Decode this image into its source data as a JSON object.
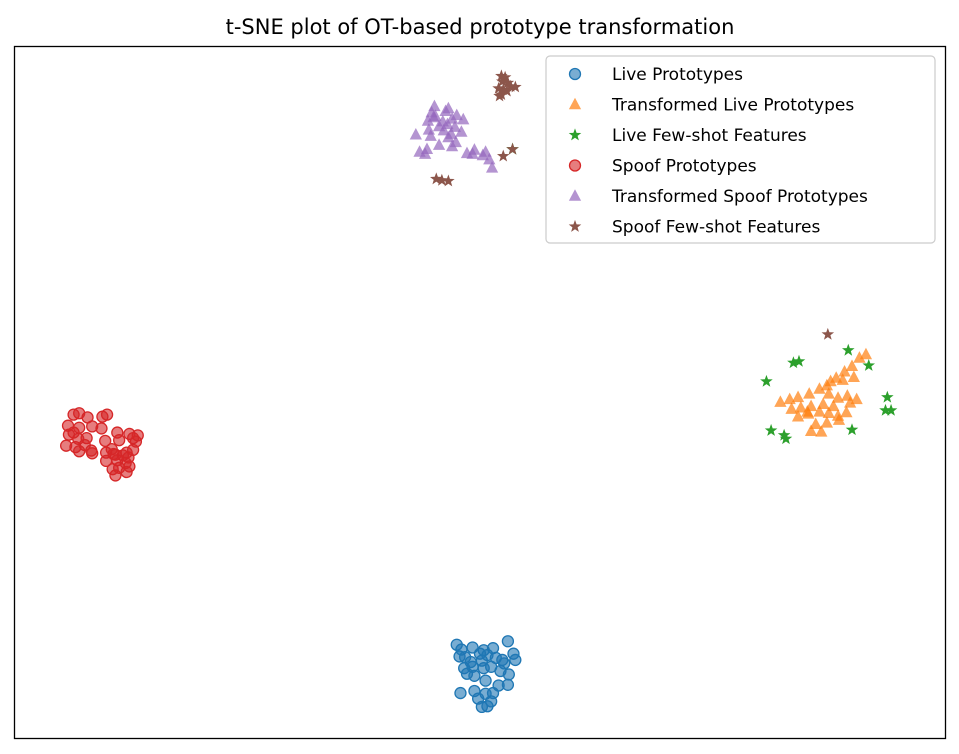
{
  "chart_data": {
    "type": "scatter",
    "title": "t-SNE plot of OT-based prototype transformation",
    "xlabel": "",
    "ylabel": "",
    "xlim": [
      0,
      100
    ],
    "ylim": [
      0,
      100
    ],
    "ticks": "none",
    "grid": false,
    "legend_position": "top-right",
    "series": [
      {
        "name": "Live Prototypes",
        "marker": "circle",
        "color": "#1f77b4",
        "points": [
          [
            47.5,
            13.5
          ],
          [
            48.0,
            12.8
          ],
          [
            49.2,
            13.1
          ],
          [
            50.4,
            12.7
          ],
          [
            51.4,
            13.0
          ],
          [
            53.0,
            14.0
          ],
          [
            47.8,
            11.8
          ],
          [
            48.4,
            11.7
          ],
          [
            50.0,
            12.2
          ],
          [
            50.8,
            12.0
          ],
          [
            51.7,
            11.6
          ],
          [
            52.4,
            11.3
          ],
          [
            53.6,
            12.2
          ],
          [
            53.8,
            11.3
          ],
          [
            48.3,
            10.1
          ],
          [
            49.2,
            10.3
          ],
          [
            50.4,
            10.1
          ],
          [
            51.2,
            10.3
          ],
          [
            52.2,
            9.7
          ],
          [
            53.1,
            9.2
          ],
          [
            48.6,
            9.3
          ],
          [
            49.4,
            9.0
          ],
          [
            50.6,
            8.3
          ],
          [
            52.0,
            7.6
          ],
          [
            53.0,
            7.7
          ],
          [
            47.9,
            6.5
          ],
          [
            49.4,
            6.8
          ],
          [
            50.6,
            6.4
          ],
          [
            51.4,
            6.5
          ],
          [
            49.8,
            5.7
          ],
          [
            51.2,
            5.3
          ],
          [
            50.8,
            4.6
          ],
          [
            50.2,
            4.5
          ],
          [
            49.0,
            11.0
          ],
          [
            50.2,
            11.2
          ],
          [
            52.6,
            10.8
          ]
        ]
      },
      {
        "name": "Transformed Live Prototypes",
        "marker": "triangle-up",
        "color": "#ff7f0e",
        "points": [
          [
            91.5,
            55.5
          ],
          [
            90.8,
            55.0
          ],
          [
            90.0,
            53.8
          ],
          [
            89.2,
            53.0
          ],
          [
            88.3,
            52.1
          ],
          [
            87.7,
            51.6
          ],
          [
            87.3,
            51.0
          ],
          [
            86.5,
            50.5
          ],
          [
            85.4,
            49.8
          ],
          [
            84.2,
            49.3
          ],
          [
            83.3,
            49.0
          ],
          [
            82.3,
            48.6
          ],
          [
            87.5,
            49.8
          ],
          [
            88.5,
            49.2
          ],
          [
            89.5,
            49.5
          ],
          [
            90.5,
            49.0
          ],
          [
            83.5,
            47.6
          ],
          [
            84.5,
            47.8
          ],
          [
            85.6,
            48.0
          ],
          [
            86.9,
            48.3
          ],
          [
            88.0,
            48.0
          ],
          [
            89.8,
            48.5
          ],
          [
            84.2,
            46.5
          ],
          [
            85.3,
            46.9
          ],
          [
            86.5,
            47.2
          ],
          [
            87.5,
            47.0
          ],
          [
            88.5,
            46.6
          ],
          [
            86.1,
            45.4
          ],
          [
            87.3,
            45.6
          ],
          [
            88.6,
            46.0
          ],
          [
            89.4,
            47.1
          ],
          [
            85.6,
            44.4
          ],
          [
            86.7,
            44.3
          ],
          [
            89.0,
            51.8
          ],
          [
            90.2,
            52.2
          ],
          [
            85.2,
            47.2
          ]
        ]
      },
      {
        "name": "Live Few-shot Features",
        "marker": "star",
        "color": "#2ca02c",
        "points": [
          [
            53.5,
            85.2
          ],
          [
            89.6,
            56.1
          ],
          [
            83.7,
            54.3
          ],
          [
            84.3,
            54.5
          ],
          [
            91.8,
            53.9
          ],
          [
            80.8,
            51.6
          ],
          [
            93.8,
            49.3
          ],
          [
            93.6,
            47.4
          ],
          [
            94.2,
            47.4
          ],
          [
            81.3,
            44.5
          ],
          [
            82.7,
            43.8
          ],
          [
            82.9,
            43.3
          ],
          [
            90.0,
            44.6
          ]
        ]
      },
      {
        "name": "Spoof Prototypes",
        "marker": "circle",
        "color": "#d62728",
        "points": [
          [
            6.3,
            46.8
          ],
          [
            6.9,
            47.0
          ],
          [
            7.8,
            46.4
          ],
          [
            9.4,
            46.5
          ],
          [
            9.9,
            46.8
          ],
          [
            5.7,
            45.2
          ],
          [
            6.9,
            44.9
          ],
          [
            8.3,
            45.1
          ],
          [
            9.3,
            44.8
          ],
          [
            11.0,
            44.2
          ],
          [
            12.3,
            44.0
          ],
          [
            13.2,
            43.8
          ],
          [
            5.8,
            43.9
          ],
          [
            6.8,
            43.3
          ],
          [
            7.7,
            43.4
          ],
          [
            9.7,
            43.0
          ],
          [
            11.2,
            43.1
          ],
          [
            12.7,
            43.4
          ],
          [
            13.0,
            42.9
          ],
          [
            5.5,
            42.3
          ],
          [
            6.5,
            42.1
          ],
          [
            7.5,
            42.4
          ],
          [
            8.2,
            41.6
          ],
          [
            10.6,
            41.1
          ],
          [
            12.0,
            41.3
          ],
          [
            12.7,
            41.7
          ],
          [
            6.9,
            41.5
          ],
          [
            8.3,
            41.2
          ],
          [
            9.8,
            41.3
          ],
          [
            10.8,
            41.0
          ],
          [
            11.6,
            40.9
          ],
          [
            12.2,
            40.6
          ],
          [
            9.8,
            40.1
          ],
          [
            11.0,
            40.2
          ],
          [
            11.9,
            39.8
          ],
          [
            12.3,
            39.3
          ],
          [
            10.5,
            38.9
          ],
          [
            11.2,
            39.1
          ],
          [
            12.0,
            38.5
          ],
          [
            10.8,
            38.0
          ],
          [
            6.3,
            44.2
          ],
          [
            10.4,
            41.8
          ]
        ]
      },
      {
        "name": "Transformed Spoof Prototypes",
        "marker": "triangle-up",
        "color": "#9467bd",
        "points": [
          [
            45.1,
            91.4
          ],
          [
            46.6,
            91.1
          ],
          [
            44.8,
            90.5
          ],
          [
            46.3,
            90.7
          ],
          [
            47.5,
            90.1
          ],
          [
            45.0,
            89.8
          ],
          [
            46.0,
            89.2
          ],
          [
            47.0,
            89.6
          ],
          [
            48.2,
            89.5
          ],
          [
            44.4,
            89.3
          ],
          [
            46.5,
            88.8
          ],
          [
            45.6,
            88.5
          ],
          [
            47.3,
            88.4
          ],
          [
            44.5,
            88.0
          ],
          [
            46.1,
            87.9
          ],
          [
            48.0,
            87.7
          ],
          [
            43.1,
            87.3
          ],
          [
            44.7,
            87.1
          ],
          [
            46.6,
            86.9
          ],
          [
            47.4,
            86.2
          ],
          [
            45.6,
            85.8
          ],
          [
            47.0,
            85.6
          ],
          [
            44.3,
            85.2
          ],
          [
            43.5,
            84.8
          ],
          [
            44.1,
            84.5
          ],
          [
            48.6,
            84.6
          ],
          [
            49.2,
            84.5
          ],
          [
            50.3,
            84.3
          ],
          [
            50.6,
            84.8
          ],
          [
            49.4,
            85.1
          ],
          [
            51.0,
            83.7
          ],
          [
            51.3,
            82.5
          ],
          [
            45.2,
            90.0
          ],
          [
            46.9,
            87.4
          ]
        ]
      },
      {
        "name": "Spoof Few-shot Features",
        "marker": "star",
        "color": "#8c564b",
        "points": [
          [
            52.3,
            95.8
          ],
          [
            52.7,
            95.6
          ],
          [
            52.4,
            95.0
          ],
          [
            53.0,
            94.8
          ],
          [
            53.3,
            94.3
          ],
          [
            53.8,
            94.2
          ],
          [
            52.0,
            94.0
          ],
          [
            52.5,
            93.8
          ],
          [
            52.9,
            93.6
          ],
          [
            52.3,
            93.1
          ],
          [
            52.1,
            92.9
          ],
          [
            53.5,
            85.2
          ],
          [
            52.5,
            84.2
          ],
          [
            45.3,
            80.9
          ],
          [
            45.9,
            80.7
          ],
          [
            46.6,
            80.6
          ],
          [
            87.4,
            58.4
          ]
        ]
      }
    ]
  }
}
